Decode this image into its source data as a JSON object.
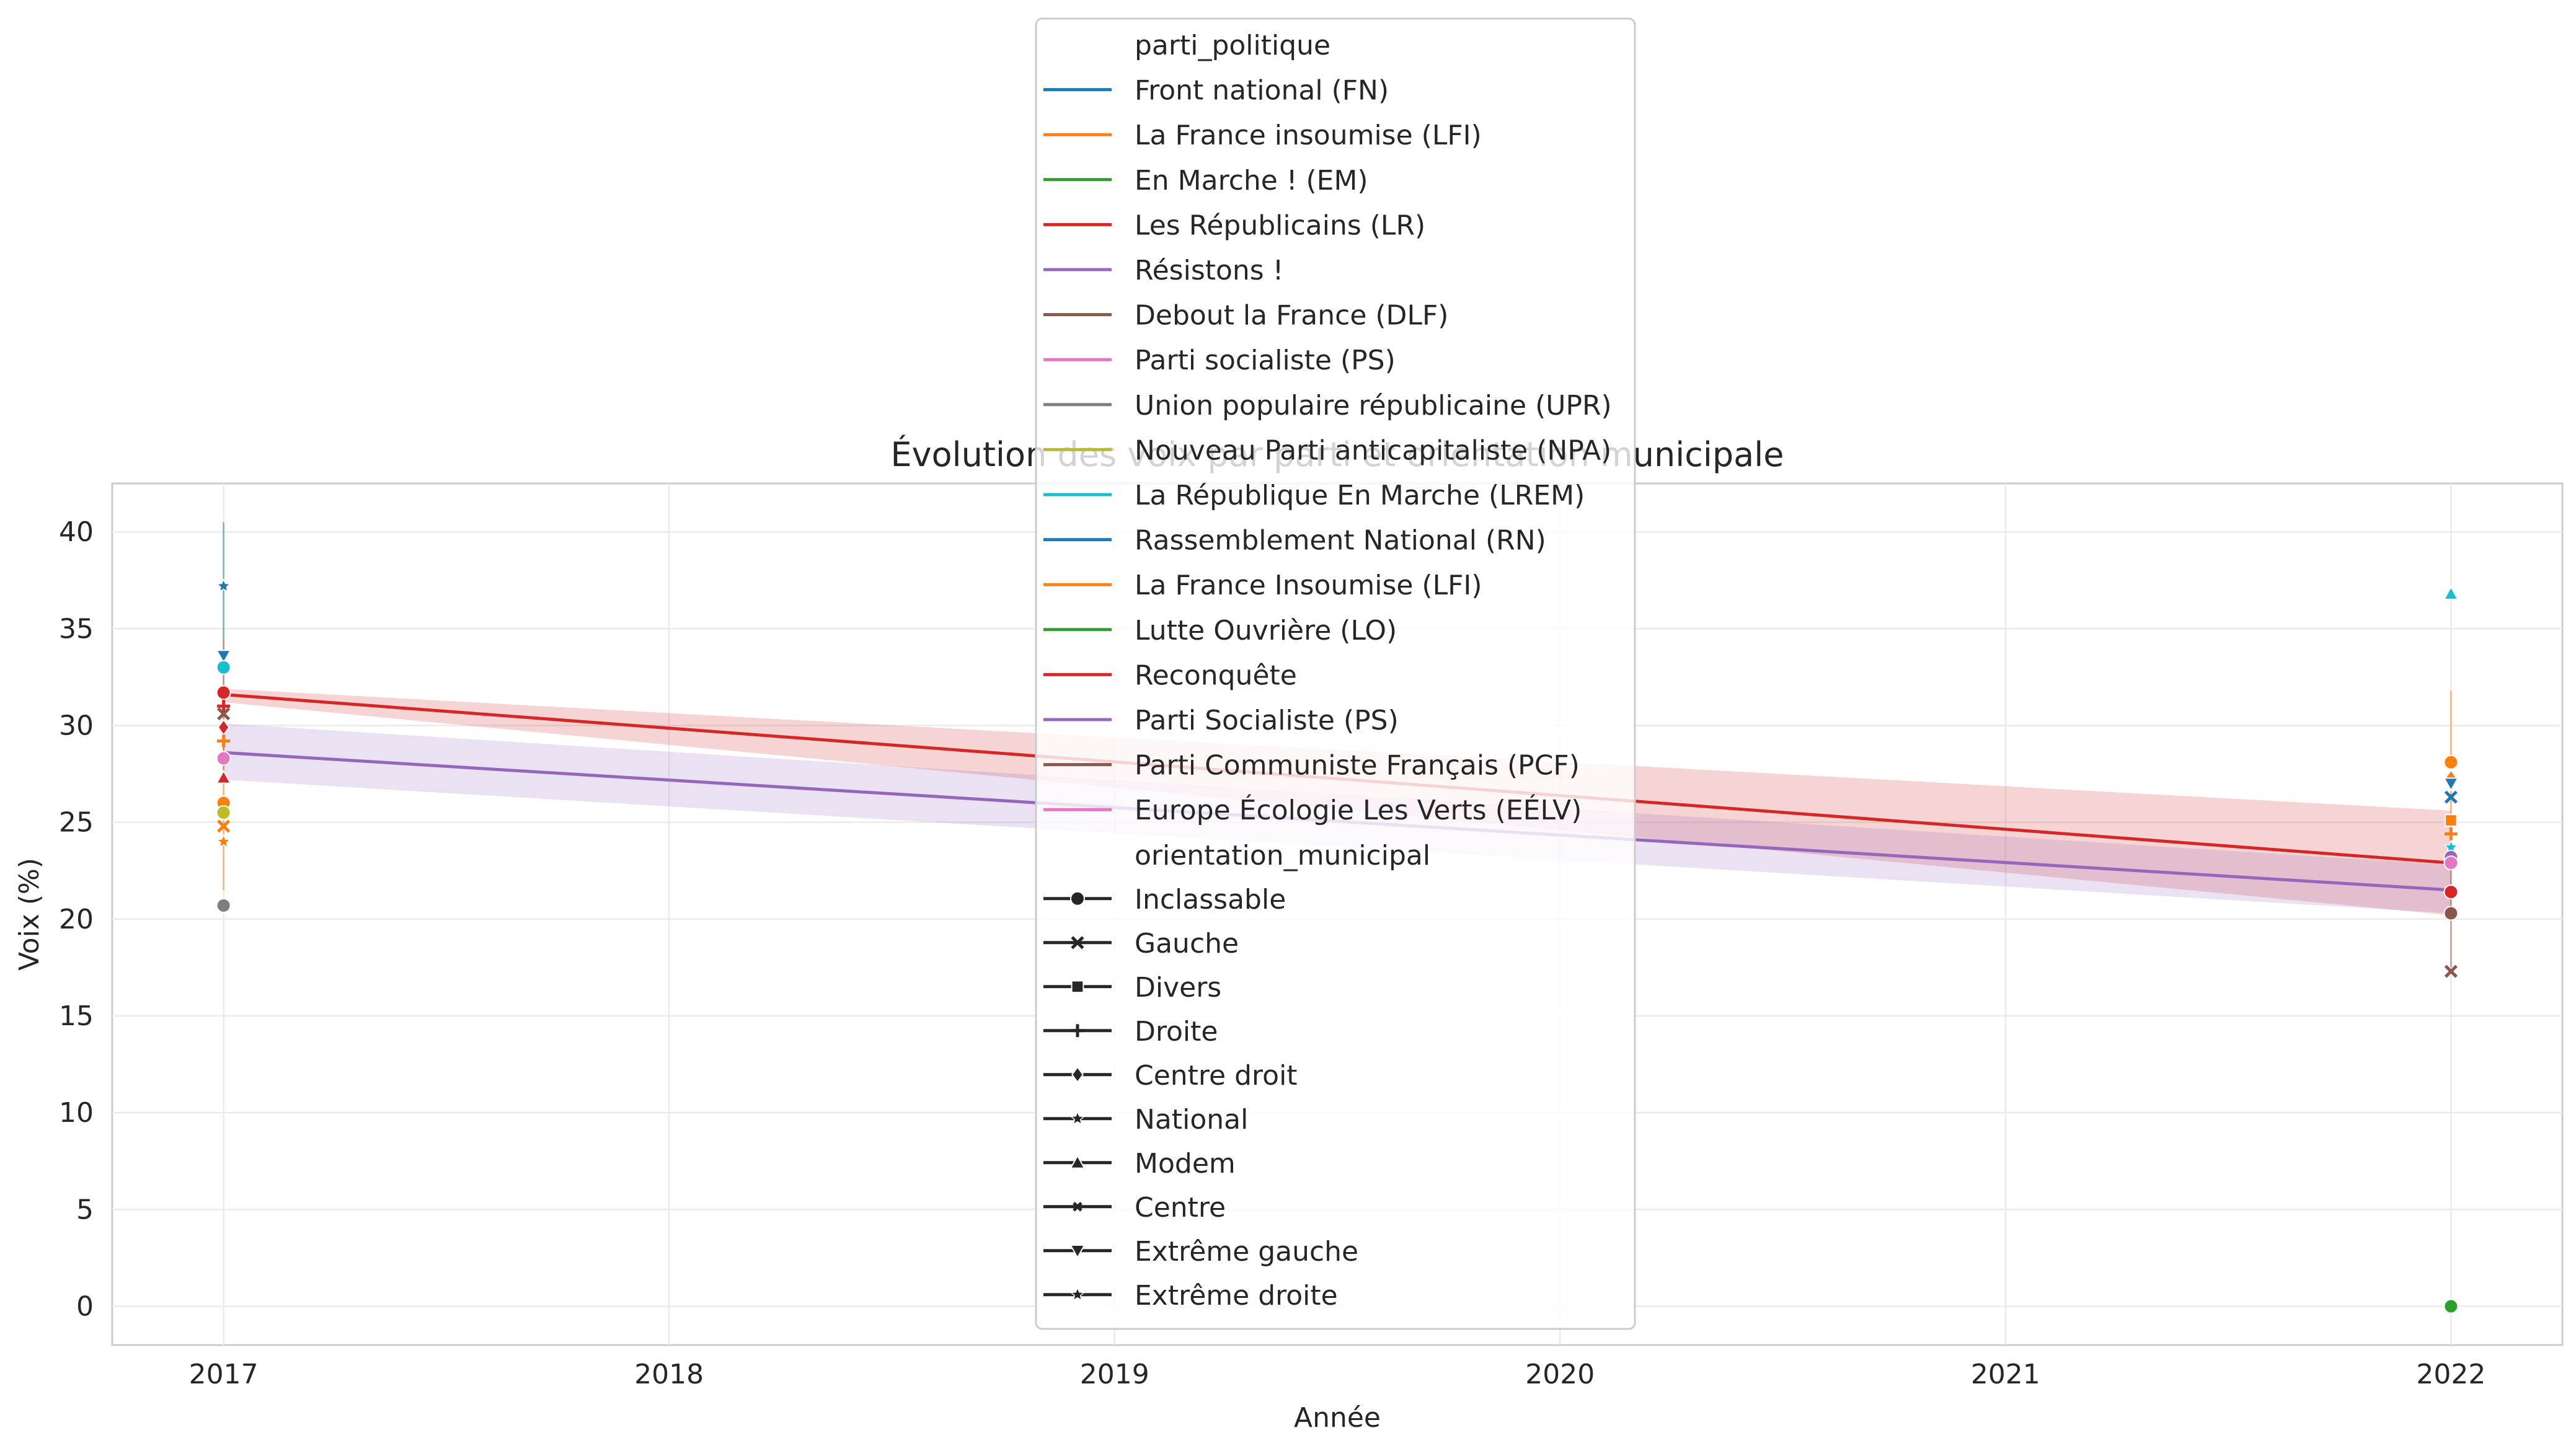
{
  "chart_data": {
    "type": "line",
    "title": "Évolution des voix par parti et orientation municipale",
    "xlabel": "Année",
    "ylabel": "Voix (%)",
    "x_ticks": [
      2017,
      2018,
      2019,
      2020,
      2021,
      2022
    ],
    "y_ticks": [
      0,
      5,
      10,
      15,
      20,
      25,
      30,
      35,
      40
    ],
    "xlim": [
      2016.75,
      2022.25
    ],
    "ylim": [
      -2,
      42.5
    ],
    "grid": true,
    "legend_placement": "top-center",
    "series": [
      {
        "name": "Les Républicains (LR)",
        "color": "#d62728",
        "x": [
          2017,
          2022
        ],
        "y": [
          31.6,
          22.9
        ],
        "ci_low": [
          31.2,
          20.2
        ],
        "ci_high": [
          31.9,
          25.6
        ]
      },
      {
        "name": "Résistons !",
        "color": "#9467bd",
        "x": [
          2017,
          2022
        ],
        "y": [
          28.6,
          21.5
        ],
        "ci_low": [
          27.2,
          20.3
        ],
        "ci_high": [
          30.1,
          22.8
        ]
      }
    ],
    "error_bars": [
      {
        "x": 2017,
        "low": 27.5,
        "high": 40.5,
        "color": "#1f77b4"
      },
      {
        "x": 2017,
        "low": 21.5,
        "high": 34.5,
        "color": "#ff7f0e"
      },
      {
        "x": 2022,
        "low": 22.5,
        "high": 31.8,
        "color": "#ff7f0e"
      },
      {
        "x": 2022,
        "low": 17.5,
        "high": 24.5,
        "color": "#8c564b"
      }
    ],
    "points": [
      {
        "x": 2017,
        "y": 37.2,
        "color": "#1f77b4",
        "marker": "star"
      },
      {
        "x": 2017,
        "y": 33.6,
        "color": "#1f77b4",
        "marker": "tri_down"
      },
      {
        "x": 2017,
        "y": 33.0,
        "color": "#17becf",
        "marker": "circle"
      },
      {
        "x": 2017,
        "y": 31.7,
        "color": "#d62728",
        "marker": "circle"
      },
      {
        "x": 2017,
        "y": 31.0,
        "color": "#d62728",
        "marker": "plus"
      },
      {
        "x": 2017,
        "y": 30.6,
        "color": "#8c564b",
        "marker": "x"
      },
      {
        "x": 2017,
        "y": 29.9,
        "color": "#d62728",
        "marker": "diamond"
      },
      {
        "x": 2017,
        "y": 29.2,
        "color": "#ff7f0e",
        "marker": "plus"
      },
      {
        "x": 2017,
        "y": 28.3,
        "color": "#e377c2",
        "marker": "circle"
      },
      {
        "x": 2017,
        "y": 27.3,
        "color": "#d62728",
        "marker": "triangle"
      },
      {
        "x": 2017,
        "y": 26.0,
        "color": "#ff7f0e",
        "marker": "circle"
      },
      {
        "x": 2017,
        "y": 25.5,
        "color": "#bcbd22",
        "marker": "circle"
      },
      {
        "x": 2017,
        "y": 24.8,
        "color": "#ff7f0e",
        "marker": "x"
      },
      {
        "x": 2017,
        "y": 24.0,
        "color": "#ff7f0e",
        "marker": "star"
      },
      {
        "x": 2017,
        "y": 20.7,
        "color": "#7f7f7f",
        "marker": "circle"
      },
      {
        "x": 2022,
        "y": 36.8,
        "color": "#17becf",
        "marker": "triangle"
      },
      {
        "x": 2022,
        "y": 28.1,
        "color": "#ff7f0e",
        "marker": "circle"
      },
      {
        "x": 2022,
        "y": 27.3,
        "color": "#ff7f0e",
        "marker": "diamond"
      },
      {
        "x": 2022,
        "y": 27.0,
        "color": "#1f77b4",
        "marker": "tri_down"
      },
      {
        "x": 2022,
        "y": 26.3,
        "color": "#1f77b4",
        "marker": "x"
      },
      {
        "x": 2022,
        "y": 25.1,
        "color": "#ff7f0e",
        "marker": "square"
      },
      {
        "x": 2022,
        "y": 24.4,
        "color": "#ff7f0e",
        "marker": "plus"
      },
      {
        "x": 2022,
        "y": 23.7,
        "color": "#17becf",
        "marker": "star"
      },
      {
        "x": 2022,
        "y": 23.2,
        "color": "#9467bd",
        "marker": "circle"
      },
      {
        "x": 2022,
        "y": 22.9,
        "color": "#e377c2",
        "marker": "circle"
      },
      {
        "x": 2022,
        "y": 21.4,
        "color": "#d62728",
        "marker": "circle"
      },
      {
        "x": 2022,
        "y": 20.3,
        "color": "#8c564b",
        "marker": "circle"
      },
      {
        "x": 2022,
        "y": 17.3,
        "color": "#8c564b",
        "marker": "x"
      },
      {
        "x": 2022,
        "y": 0.0,
        "color": "#2ca02c",
        "marker": "circle"
      }
    ],
    "legend": {
      "hue_title": "parti_politique",
      "hue_entries": [
        {
          "label": "Front national (FN)",
          "color": "#1f77b4"
        },
        {
          "label": "La France insoumise (LFI)",
          "color": "#ff7f0e"
        },
        {
          "label": "En Marche ! (EM)",
          "color": "#2ca02c"
        },
        {
          "label": "Les Républicains (LR)",
          "color": "#d62728"
        },
        {
          "label": "Résistons !",
          "color": "#9467bd"
        },
        {
          "label": "Debout la France (DLF)",
          "color": "#8c564b"
        },
        {
          "label": "Parti socialiste (PS)",
          "color": "#e377c2"
        },
        {
          "label": "Union populaire républicaine (UPR)",
          "color": "#7f7f7f"
        },
        {
          "label": "Nouveau Parti anticapitaliste (NPA)",
          "color": "#bcbd22"
        },
        {
          "label": "La République En Marche (LREM)",
          "color": "#17becf"
        },
        {
          "label": "Rassemblement National (RN)",
          "color": "#1f77b4"
        },
        {
          "label": "La France Insoumise (LFI)",
          "color": "#ff7f0e"
        },
        {
          "label": "Lutte Ouvrière (LO)",
          "color": "#2ca02c"
        },
        {
          "label": "Reconquête",
          "color": "#d62728"
        },
        {
          "label": "Parti Socialiste (PS)",
          "color": "#9467bd"
        },
        {
          "label": "Parti Communiste Français (PCF)",
          "color": "#8c564b"
        },
        {
          "label": "Europe Écologie Les Verts (EÉLV)",
          "color": "#e377c2"
        }
      ],
      "style_title": "orientation_municipal",
      "style_entries": [
        {
          "label": "Inclassable",
          "marker": "circle"
        },
        {
          "label": "Gauche",
          "marker": "x"
        },
        {
          "label": "Divers",
          "marker": "square"
        },
        {
          "label": "Droite",
          "marker": "plus"
        },
        {
          "label": "Centre droit",
          "marker": "diamond"
        },
        {
          "label": "National",
          "marker": "star"
        },
        {
          "label": "Modem",
          "marker": "triangle"
        },
        {
          "label": "Centre",
          "marker": "smallx"
        },
        {
          "label": "Extrême gauche",
          "marker": "tri_down"
        },
        {
          "label": "Extrême droite",
          "marker": "star"
        }
      ]
    }
  }
}
